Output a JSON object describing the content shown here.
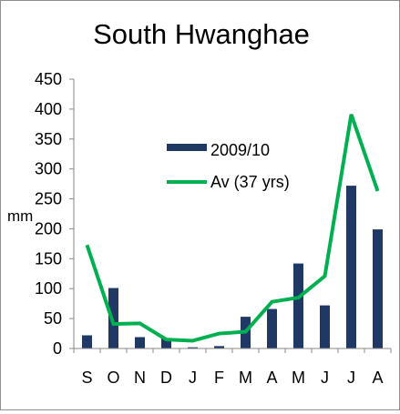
{
  "chart_data": {
    "type": "bar+line",
    "title": "South Hwanghae",
    "xlabel": "",
    "ylabel": "mm",
    "ylim": [
      0,
      450
    ],
    "y_ticks": [
      0,
      50,
      100,
      150,
      200,
      250,
      300,
      350,
      400,
      450
    ],
    "grid": false,
    "legend_position": "right",
    "categories": [
      "S",
      "O",
      "N",
      "D",
      "J",
      "F",
      "M",
      "A",
      "M",
      "J",
      "J",
      "A"
    ],
    "series": [
      {
        "name": "2009/10",
        "type": "bar",
        "color": "#1f3864",
        "values": [
          22,
          101,
          19,
          17,
          2,
          4,
          53,
          66,
          142,
          72,
          272,
          199
        ]
      },
      {
        "name": "Av (37 yrs)",
        "type": "line",
        "color": "#00b050",
        "values": [
          173,
          41,
          42,
          15,
          13,
          25,
          28,
          78,
          85,
          121,
          391,
          263
        ]
      }
    ]
  }
}
